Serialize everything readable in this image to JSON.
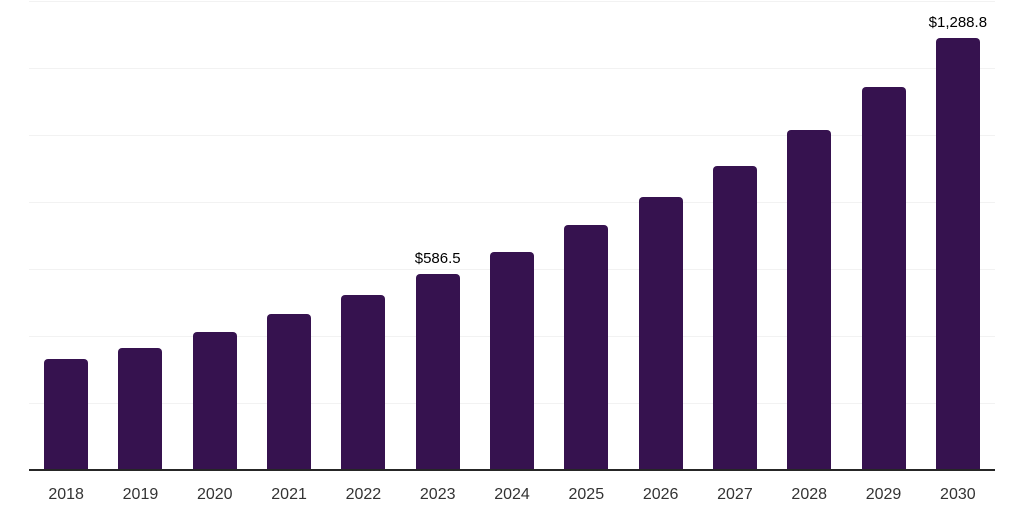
{
  "chart_data": {
    "type": "bar",
    "title": "",
    "xlabel": "",
    "ylabel": "",
    "categories": [
      "2018",
      "2019",
      "2020",
      "2021",
      "2022",
      "2023",
      "2024",
      "2025",
      "2026",
      "2027",
      "2028",
      "2029",
      "2030"
    ],
    "values": [
      330,
      365,
      413,
      466,
      523,
      586.5,
      651,
      730,
      814,
      906,
      1014,
      1143,
      1288.8
    ],
    "data_labels": [
      "",
      "",
      "",
      "",
      "",
      "$586.5",
      "",
      "",
      "",
      "",
      "",
      "",
      "$1,288.8"
    ],
    "ylim": [
      0,
      1400
    ],
    "grid_step": 200,
    "grid": true,
    "legend": "none",
    "bar_color": "#36124f",
    "grid_color": "#f2f2f2",
    "axis_line_color": "#262626",
    "tick_label_color": "#333333",
    "data_label_color": "#000000"
  }
}
